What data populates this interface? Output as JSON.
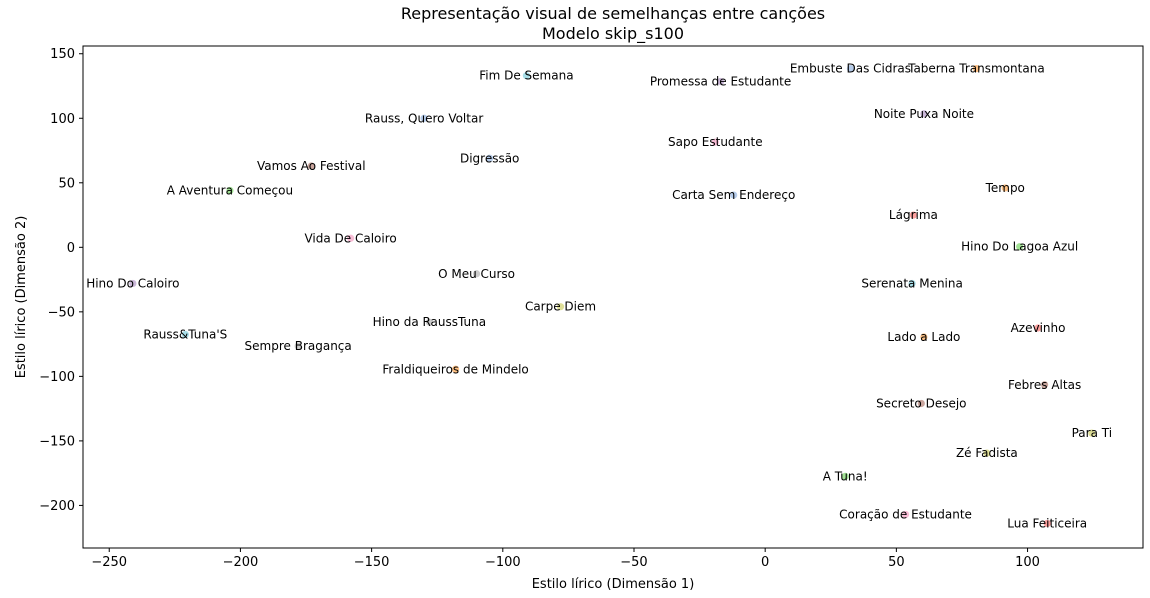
{
  "chart_data": {
    "type": "scatter",
    "title": "Representação visual de semelhanças entre canções",
    "subtitle": "Modelo skip_s100",
    "xlabel": "Estilo lírico (Dimensão 1)",
    "ylabel": "Estilo lírico (Dimensão 2)",
    "xlim": [
      -260,
      144
    ],
    "ylim": [
      -233,
      156
    ],
    "xticks": [
      -250,
      -200,
      -150,
      -100,
      -50,
      0,
      50,
      100
    ],
    "xtick_labels": [
      "−250",
      "−200",
      "−150",
      "−100",
      "−50",
      "0",
      "50",
      "100"
    ],
    "yticks": [
      -200,
      -150,
      -100,
      -50,
      0,
      50,
      100,
      150
    ],
    "ytick_labels": [
      "−200",
      "−150",
      "−100",
      "−50",
      "0",
      "50",
      "100",
      "150"
    ],
    "grid": false,
    "legend": "none",
    "points": [
      {
        "label": "Embuste Das Cidras",
        "x": 32.5,
        "y": 138.5,
        "color": "#aec7e8"
      },
      {
        "label": "Taberna Transmontana",
        "x": 80.5,
        "y": 138.5,
        "color": "#ffbb78"
      },
      {
        "label": "Fim De Semana",
        "x": -91,
        "y": 133,
        "color": "#9edae5"
      },
      {
        "label": "Promessa de Estudante",
        "x": -17,
        "y": 128.5,
        "color": "#c5b0d5"
      },
      {
        "label": "Rauss, Quero Voltar",
        "x": -130,
        "y": 100,
        "color": "#aec7e8"
      },
      {
        "label": "Noite Puxa Noite",
        "x": 60.5,
        "y": 103.5,
        "color": "#c5b0d5"
      },
      {
        "label": "Sapo Estudante",
        "x": -19,
        "y": 81.5,
        "color": "#f7b6d2"
      },
      {
        "label": "Digressão",
        "x": -105,
        "y": 69,
        "color": "#aec7e8"
      },
      {
        "label": "Vamos Ao Festival",
        "x": -173,
        "y": 63,
        "color": "#c49c94"
      },
      {
        "label": "A Aventura Começou",
        "x": -204,
        "y": 44,
        "color": "#98df8a"
      },
      {
        "label": "Tempo",
        "x": 91.5,
        "y": 46,
        "color": "#ffbb78"
      },
      {
        "label": "Carta Sem Endereço",
        "x": -12,
        "y": 40.5,
        "color": "#aec7e8"
      },
      {
        "label": "Lágrima",
        "x": 56.5,
        "y": 25,
        "color": "#ff9896"
      },
      {
        "label": "Vida De Caloiro",
        "x": -158,
        "y": 7,
        "color": "#f7b6d2"
      },
      {
        "label": "Hino Do Lagoa Azul",
        "x": 97,
        "y": 0.5,
        "color": "#98df8a"
      },
      {
        "label": "O Meu Curso",
        "x": -110,
        "y": -20.5,
        "color": "#c7c7c7"
      },
      {
        "label": "Hino Do Caloiro",
        "x": -241,
        "y": -28,
        "color": "#c5b0d5"
      },
      {
        "label": "Serenata Menina",
        "x": 56,
        "y": -28,
        "color": "#9edae5"
      },
      {
        "label": "Carpe Diem",
        "x": -78,
        "y": -46,
        "color": "#dbdb8d"
      },
      {
        "label": "Hino da RaussTuna",
        "x": -128,
        "y": -58,
        "color": "#c7c7c7"
      },
      {
        "label": "Azevinho",
        "x": 104,
        "y": -62.5,
        "color": "#ff9896"
      },
      {
        "label": "Rauss&Tuna'S",
        "x": -221,
        "y": -67.5,
        "color": "#9edae5"
      },
      {
        "label": "Lado a Lado",
        "x": 60.5,
        "y": -69.5,
        "color": "#ffbb78"
      },
      {
        "label": "Sempre Bragança",
        "x": -178,
        "y": -76.5,
        "color": "#c7c7c7"
      },
      {
        "label": "Fraldiqueiros de Mindelo",
        "x": -118,
        "y": -94.5,
        "color": "#ffbb78"
      },
      {
        "label": "Febres Altas",
        "x": 106.5,
        "y": -106.5,
        "color": "#c49c94"
      },
      {
        "label": "Secreto Desejo",
        "x": 59.5,
        "y": -121,
        "color": "#c49c94"
      },
      {
        "label": "Para Ti",
        "x": 124.5,
        "y": -144,
        "color": "#dbdb8d"
      },
      {
        "label": "Zé Fadista",
        "x": 84.5,
        "y": -159.5,
        "color": "#dbdb8d"
      },
      {
        "label": "A Tuna!",
        "x": 30.5,
        "y": -177.5,
        "color": "#98df8a"
      },
      {
        "label": "Coração de Estudante",
        "x": 53.5,
        "y": -207,
        "color": "#f7b6d2"
      },
      {
        "label": "Lua Feiticeira",
        "x": 107.5,
        "y": -214,
        "color": "#ff9896"
      }
    ]
  }
}
